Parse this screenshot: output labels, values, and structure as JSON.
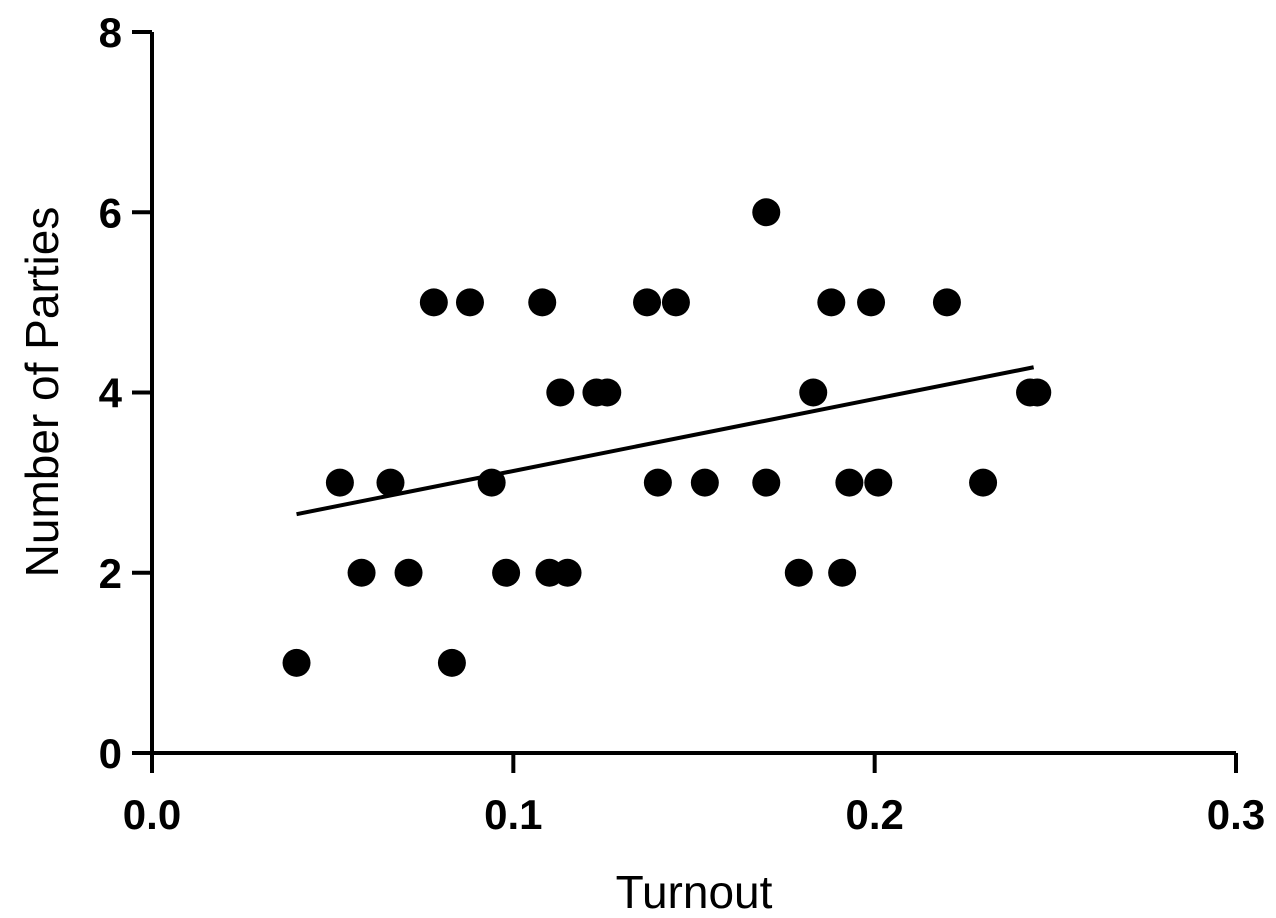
{
  "chart_data": {
    "type": "scatter",
    "xlabel": "Turnout",
    "ylabel": "Number of Parties",
    "xlim": [
      0.0,
      0.3
    ],
    "ylim": [
      0,
      8
    ],
    "x_ticks": [
      {
        "value": 0.0,
        "label": "0.0"
      },
      {
        "value": 0.1,
        "label": "0.1"
      },
      {
        "value": 0.2,
        "label": "0.2"
      },
      {
        "value": 0.3,
        "label": "0.3"
      }
    ],
    "y_ticks": [
      {
        "value": 0,
        "label": "0"
      },
      {
        "value": 2,
        "label": "2"
      },
      {
        "value": 4,
        "label": "4"
      },
      {
        "value": 6,
        "label": "6"
      },
      {
        "value": 8,
        "label": "8"
      }
    ],
    "points": [
      {
        "x": 0.04,
        "y": 1
      },
      {
        "x": 0.052,
        "y": 3
      },
      {
        "x": 0.058,
        "y": 2
      },
      {
        "x": 0.066,
        "y": 3
      },
      {
        "x": 0.071,
        "y": 2
      },
      {
        "x": 0.078,
        "y": 5
      },
      {
        "x": 0.083,
        "y": 1
      },
      {
        "x": 0.088,
        "y": 5
      },
      {
        "x": 0.094,
        "y": 3
      },
      {
        "x": 0.098,
        "y": 2
      },
      {
        "x": 0.108,
        "y": 5
      },
      {
        "x": 0.11,
        "y": 2
      },
      {
        "x": 0.113,
        "y": 4
      },
      {
        "x": 0.115,
        "y": 2
      },
      {
        "x": 0.123,
        "y": 4
      },
      {
        "x": 0.126,
        "y": 4
      },
      {
        "x": 0.137,
        "y": 5
      },
      {
        "x": 0.14,
        "y": 3
      },
      {
        "x": 0.145,
        "y": 5
      },
      {
        "x": 0.153,
        "y": 3
      },
      {
        "x": 0.17,
        "y": 6
      },
      {
        "x": 0.17,
        "y": 3
      },
      {
        "x": 0.179,
        "y": 2
      },
      {
        "x": 0.183,
        "y": 4
      },
      {
        "x": 0.188,
        "y": 5
      },
      {
        "x": 0.191,
        "y": 2
      },
      {
        "x": 0.193,
        "y": 3
      },
      {
        "x": 0.199,
        "y": 5
      },
      {
        "x": 0.201,
        "y": 3
      },
      {
        "x": 0.22,
        "y": 5
      },
      {
        "x": 0.23,
        "y": 3
      },
      {
        "x": 0.243,
        "y": 4
      },
      {
        "x": 0.245,
        "y": 4
      }
    ],
    "fit_line": {
      "x": [
        0.04,
        0.244
      ],
      "y": [
        2.65,
        4.28
      ]
    },
    "grid": false,
    "legend": "none"
  }
}
